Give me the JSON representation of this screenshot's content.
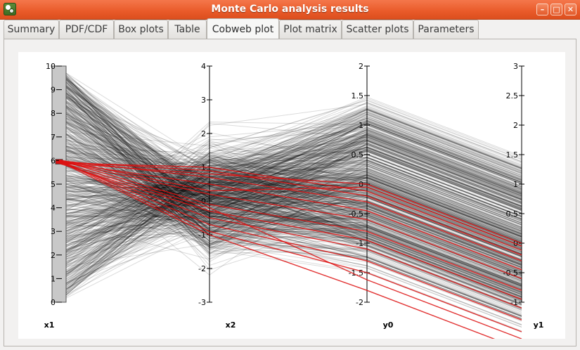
{
  "window": {
    "title": "Monte Carlo analysis results",
    "icon": "app-icon",
    "buttons": [
      {
        "name": "minimize",
        "glyph": "–"
      },
      {
        "name": "maximize",
        "glyph": "□"
      },
      {
        "name": "close",
        "glyph": "✕"
      }
    ]
  },
  "tabs": [
    {
      "label": "Summary",
      "active": false
    },
    {
      "label": "PDF/CDF",
      "active": false
    },
    {
      "label": "Box plots",
      "active": false
    },
    {
      "label": "Table",
      "active": false
    },
    {
      "label": "Cobweb plot",
      "active": true
    },
    {
      "label": "Plot matrix",
      "active": false
    },
    {
      "label": "Scatter plots",
      "active": false
    },
    {
      "label": "Parameters",
      "active": false
    }
  ],
  "chart_data": {
    "type": "parallel-coordinates",
    "axes": [
      {
        "name": "x1",
        "min": 0,
        "max": 10,
        "ticks": [
          "0",
          "1",
          "2",
          "3",
          "4",
          "5",
          "6",
          "7",
          "8",
          "9",
          "10"
        ]
      },
      {
        "name": "x2",
        "min": -3,
        "max": 4,
        "ticks": [
          "-3",
          "-2",
          "-1",
          "0",
          "1",
          "2",
          "3",
          "4"
        ]
      },
      {
        "name": "y0",
        "min": -2,
        "max": 2,
        "ticks": [
          "-2",
          "-1.5",
          "-1",
          "-0.5",
          "0",
          "0.5",
          "1",
          "1.5",
          "2"
        ]
      },
      {
        "name": "y1",
        "min": -1,
        "max": 3,
        "ticks": [
          "-1",
          "-0.5",
          "0",
          "0.5",
          "1",
          "1.5",
          "2",
          "2.5",
          "3"
        ]
      }
    ],
    "selection": {
      "axis": "x1",
      "min": 5.85,
      "max": 6.05,
      "color": "#dd1111"
    },
    "samples_color": "#000000",
    "selected_samples": [
      [
        5.9,
        1.0,
        -0.12,
        -0.12
      ],
      [
        5.95,
        0.9,
        -0.2,
        -0.2
      ],
      [
        6.0,
        0.7,
        -0.3,
        -0.3
      ],
      [
        5.92,
        0.5,
        -0.45,
        -0.45
      ],
      [
        5.97,
        0.2,
        -0.6,
        -0.6
      ],
      [
        6.02,
        -0.1,
        -0.8,
        -0.8
      ],
      [
        5.88,
        -0.3,
        -0.95,
        -0.95
      ],
      [
        5.93,
        -0.5,
        -1.1,
        -1.1
      ],
      [
        5.99,
        -0.7,
        -1.3,
        -1.3
      ],
      [
        6.01,
        -0.9,
        -1.5,
        -1.5
      ],
      [
        5.96,
        -1.0,
        -1.8,
        -1.8
      ],
      [
        5.9,
        0.8,
        0.0,
        0.0
      ],
      [
        6.03,
        0.3,
        -0.05,
        -0.05
      ],
      [
        5.94,
        -0.2,
        -1.62,
        -1.62
      ]
    ]
  }
}
